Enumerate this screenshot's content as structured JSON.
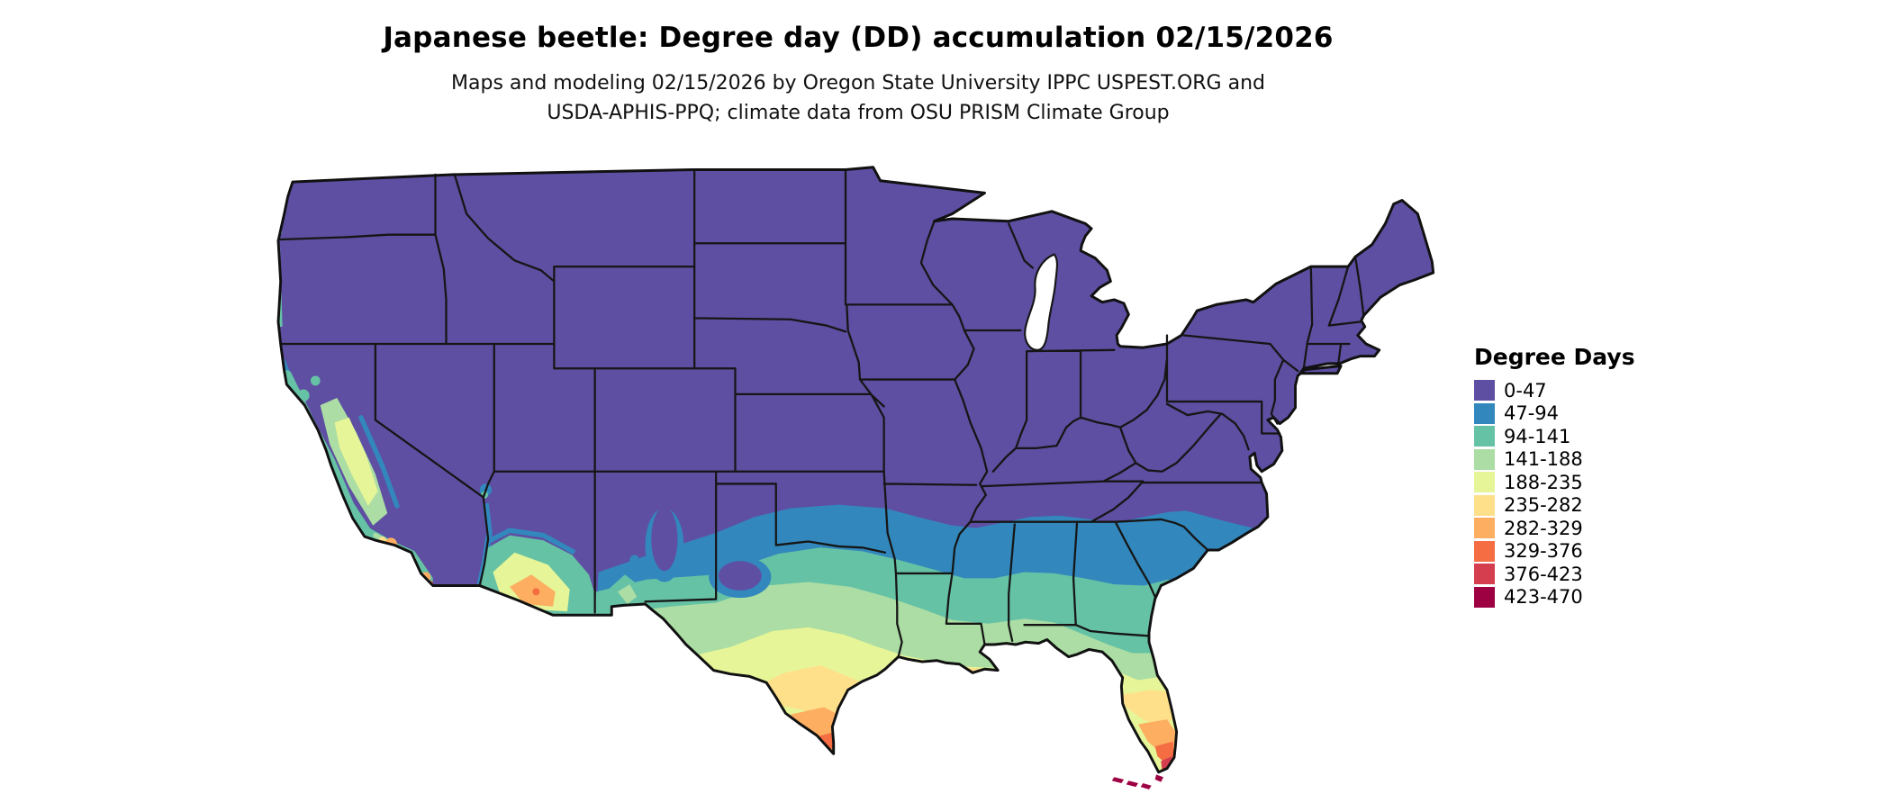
{
  "title": "Japanese beetle: Degree day (DD) accumulation 02/15/2026",
  "subtitle_line1": "Maps and modeling 02/15/2026 by Oregon State University IPPC USPEST.ORG and",
  "subtitle_line2": "USDA-APHIS-PPQ; climate data from OSU PRISM Climate Group",
  "legend": {
    "title": "Degree Days",
    "entries": [
      {
        "label": "0-47",
        "color": "#5e4fa2"
      },
      {
        "label": "47-94",
        "color": "#3288bd"
      },
      {
        "label": "94-141",
        "color": "#66c2a5"
      },
      {
        "label": "141-188",
        "color": "#abdda4"
      },
      {
        "label": "188-235",
        "color": "#e6f598"
      },
      {
        "label": "235-282",
        "color": "#fee08b"
      },
      {
        "label": "282-329",
        "color": "#fdae61"
      },
      {
        "label": "329-376",
        "color": "#f46d43"
      },
      {
        "label": "376-423",
        "color": "#d53e4f"
      },
      {
        "label": "423-470",
        "color": "#9e0142"
      }
    ]
  }
}
